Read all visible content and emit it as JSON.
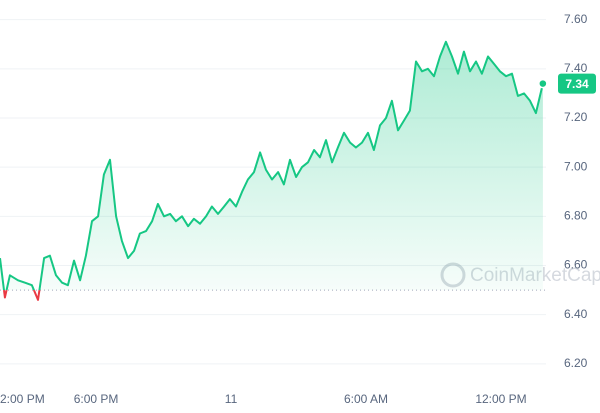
{
  "chart_data": {
    "type": "line",
    "watermark": "CoinMarketCap",
    "x": [
      13.73,
      13.95,
      14.17,
      14.53,
      14.84,
      15.15,
      15.42,
      15.69,
      15.95,
      16.22,
      16.49,
      16.75,
      17.02,
      17.29,
      17.55,
      17.82,
      18.09,
      18.35,
      18.62,
      18.89,
      19.15,
      19.42,
      19.69,
      19.95,
      20.22,
      20.49,
      20.75,
      21.02,
      21.29,
      21.55,
      21.82,
      22.09,
      22.35,
      22.62,
      22.89,
      23.15,
      23.42,
      23.69,
      23.95,
      24.22,
      24.49,
      24.75,
      25.02,
      25.29,
      25.55,
      25.82,
      26.09,
      26.35,
      26.62,
      26.89,
      27.15,
      27.42,
      27.69,
      27.95,
      28.22,
      28.49,
      28.75,
      29.02,
      29.29,
      29.55,
      29.82,
      30.09,
      30.35,
      30.62,
      30.89,
      31.15,
      31.42,
      31.69,
      31.95,
      32.22,
      32.49,
      32.75,
      33.02,
      33.29,
      33.55,
      33.82,
      34.09,
      34.35,
      34.62,
      34.89,
      35.15,
      35.42,
      35.69,
      35.95,
      36.22,
      36.49,
      36.75,
      37.02,
      37.29,
      37.55,
      37.86
    ],
    "values": [
      6.63,
      6.47,
      6.56,
      6.54,
      6.53,
      6.52,
      6.46,
      6.63,
      6.64,
      6.56,
      6.53,
      6.52,
      6.62,
      6.54,
      6.64,
      6.78,
      6.8,
      6.97,
      7.03,
      6.8,
      6.7,
      6.63,
      6.66,
      6.73,
      6.74,
      6.78,
      6.85,
      6.8,
      6.81,
      6.78,
      6.8,
      6.76,
      6.79,
      6.77,
      6.8,
      6.84,
      6.81,
      6.84,
      6.87,
      6.84,
      6.9,
      6.95,
      6.98,
      7.06,
      6.99,
      6.95,
      6.98,
      6.93,
      7.03,
      6.96,
      7.0,
      7.02,
      7.07,
      7.04,
      7.11,
      7.02,
      7.08,
      7.14,
      7.1,
      7.08,
      7.1,
      7.14,
      7.07,
      7.17,
      7.2,
      7.27,
      7.15,
      7.19,
      7.23,
      7.43,
      7.39,
      7.4,
      7.37,
      7.45,
      7.51,
      7.45,
      7.38,
      7.47,
      7.39,
      7.43,
      7.38,
      7.45,
      7.42,
      7.39,
      7.37,
      7.38,
      7.29,
      7.3,
      7.27,
      7.22,
      7.34
    ],
    "color": "#16c784",
    "down_color": "#ea3943",
    "baseline": 6.5,
    "xlim": [
      13.73,
      38.0
    ],
    "ylim": [
      6.0,
      7.68
    ],
    "xticks": [
      {
        "value": 14,
        "label": "2:00 PM"
      },
      {
        "value": 18,
        "label": "6:00 PM"
      },
      {
        "value": 24,
        "label": "11"
      },
      {
        "value": 30,
        "label": "6:00 AM"
      },
      {
        "value": 36,
        "label": "12:00 PM"
      }
    ],
    "yticks": [
      {
        "value": 6.2,
        "label": "6.20"
      },
      {
        "value": 6.4,
        "label": "6.40"
      },
      {
        "value": 6.6,
        "label": "6.60"
      },
      {
        "value": 6.8,
        "label": "6.80"
      },
      {
        "value": 7.0,
        "label": "7.00"
      },
      {
        "value": 7.2,
        "label": "7.20"
      },
      {
        "value": 7.4,
        "label": "7.40"
      },
      {
        "value": 7.6,
        "label": "7.60"
      }
    ],
    "grid": true
  }
}
